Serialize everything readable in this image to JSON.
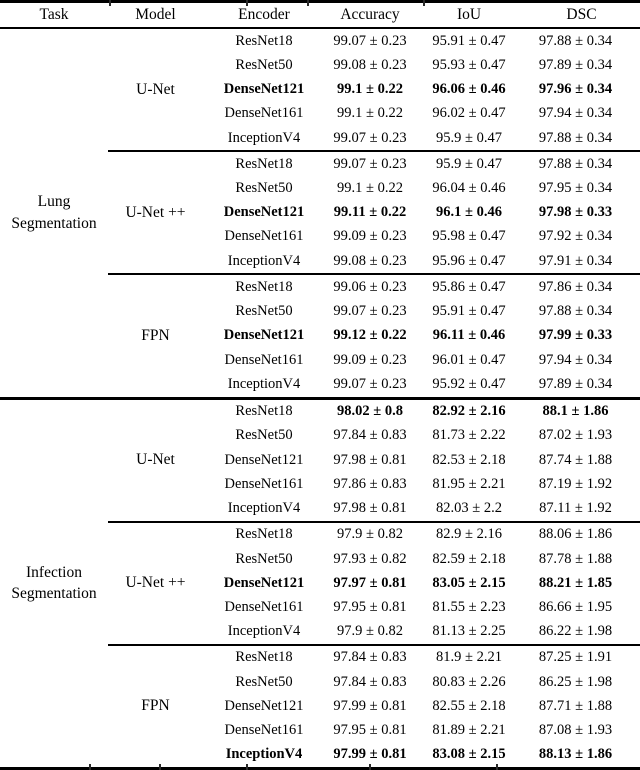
{
  "table": {
    "headers": [
      "Task",
      "Model",
      "Encoder",
      "Accuracy",
      "IoU",
      "DSC"
    ],
    "tasks": [
      {
        "task": "Lung Segmentation",
        "models": [
          {
            "model": "U-Net",
            "rows": [
              {
                "encoder": "ResNet18",
                "accuracy": "99.07 ± 0.23",
                "iou": "95.91 ± 0.47",
                "dsc": "97.88 ± 0.34",
                "bold_encoder": false,
                "bold_values": false
              },
              {
                "encoder": "ResNet50",
                "accuracy": "99.08 ± 0.23",
                "iou": "95.93 ± 0.47",
                "dsc": "97.89 ± 0.34",
                "bold_encoder": false,
                "bold_values": false
              },
              {
                "encoder": "DenseNet121",
                "accuracy": "99.1 ± 0.22",
                "iou": "96.06 ± 0.46",
                "dsc": "97.96 ± 0.34",
                "bold_encoder": true,
                "bold_values": true
              },
              {
                "encoder": "DenseNet161",
                "accuracy": "99.1 ± 0.22",
                "iou": "96.02 ± 0.47",
                "dsc": "97.94 ± 0.34",
                "bold_encoder": false,
                "bold_values": false
              },
              {
                "encoder": "InceptionV4",
                "accuracy": "99.07 ± 0.23",
                "iou": "95.9 ± 0.47",
                "dsc": "97.88 ± 0.34",
                "bold_encoder": false,
                "bold_values": false
              }
            ]
          },
          {
            "model": "U-Net ++",
            "rows": [
              {
                "encoder": "ResNet18",
                "accuracy": "99.07 ± 0.23",
                "iou": "95.9 ± 0.47",
                "dsc": "97.88 ± 0.34",
                "bold_encoder": false,
                "bold_values": false
              },
              {
                "encoder": "ResNet50",
                "accuracy": "99.1 ± 0.22",
                "iou": "96.04 ± 0.46",
                "dsc": "97.95 ± 0.34",
                "bold_encoder": false,
                "bold_values": false
              },
              {
                "encoder": "DenseNet121",
                "accuracy": "99.11 ± 0.22",
                "iou": "96.1 ± 0.46",
                "dsc": "97.98 ± 0.33",
                "bold_encoder": true,
                "bold_values": true
              },
              {
                "encoder": "DenseNet161",
                "accuracy": "99.09 ± 0.23",
                "iou": "95.98 ± 0.47",
                "dsc": "97.92 ± 0.34",
                "bold_encoder": false,
                "bold_values": false
              },
              {
                "encoder": "InceptionV4",
                "accuracy": "99.08 ± 0.23",
                "iou": "95.96 ± 0.47",
                "dsc": "97.91 ± 0.34",
                "bold_encoder": false,
                "bold_values": false
              }
            ]
          },
          {
            "model": "FPN",
            "rows": [
              {
                "encoder": "ResNet18",
                "accuracy": "99.06 ± 0.23",
                "iou": "95.86 ± 0.47",
                "dsc": "97.86 ± 0.34",
                "bold_encoder": false,
                "bold_values": false
              },
              {
                "encoder": "ResNet50",
                "accuracy": "99.07 ± 0.23",
                "iou": "95.91 ± 0.47",
                "dsc": "97.88 ± 0.34",
                "bold_encoder": false,
                "bold_values": false
              },
              {
                "encoder": "DenseNet121",
                "accuracy": "99.12 ± 0.22",
                "iou": "96.11 ± 0.46",
                "dsc": "97.99 ± 0.33",
                "bold_encoder": true,
                "bold_values": true
              },
              {
                "encoder": "DenseNet161",
                "accuracy": "99.09 ± 0.23",
                "iou": "96.01 ± 0.47",
                "dsc": "97.94 ± 0.34",
                "bold_encoder": false,
                "bold_values": false
              },
              {
                "encoder": "InceptionV4",
                "accuracy": "99.07 ± 0.23",
                "iou": "95.92 ± 0.47",
                "dsc": "97.89 ± 0.34",
                "bold_encoder": false,
                "bold_values": false
              }
            ]
          }
        ]
      },
      {
        "task": "Infection Segmentation",
        "models": [
          {
            "model": "U-Net",
            "rows": [
              {
                "encoder": "ResNet18",
                "accuracy": "98.02 ± 0.8",
                "iou": "82.92 ± 2.16",
                "dsc": "88.1 ± 1.86",
                "bold_encoder": false,
                "bold_values": true
              },
              {
                "encoder": "ResNet50",
                "accuracy": "97.84 ± 0.83",
                "iou": "81.73 ± 2.22",
                "dsc": "87.02 ± 1.93",
                "bold_encoder": false,
                "bold_values": false
              },
              {
                "encoder": "DenseNet121",
                "accuracy": "97.98 ± 0.81",
                "iou": "82.53 ± 2.18",
                "dsc": "87.74 ± 1.88",
                "bold_encoder": false,
                "bold_values": false
              },
              {
                "encoder": "DenseNet161",
                "accuracy": "97.86 ± 0.83",
                "iou": "81.95 ± 2.21",
                "dsc": "87.19 ± 1.92",
                "bold_encoder": false,
                "bold_values": false
              },
              {
                "encoder": "InceptionV4",
                "accuracy": "97.98 ± 0.81",
                "iou": "82.03 ± 2.2",
                "dsc": "87.11 ± 1.92",
                "bold_encoder": false,
                "bold_values": false
              }
            ]
          },
          {
            "model": "U-Net ++",
            "rows": [
              {
                "encoder": "ResNet18",
                "accuracy": "97.9 ± 0.82",
                "iou": "82.9 ± 2.16",
                "dsc": "88.06 ± 1.86",
                "bold_encoder": false,
                "bold_values": false
              },
              {
                "encoder": "ResNet50",
                "accuracy": "97.93 ± 0.82",
                "iou": "82.59 ± 2.18",
                "dsc": "87.78 ± 1.88",
                "bold_encoder": false,
                "bold_values": false
              },
              {
                "encoder": "DenseNet121",
                "accuracy": "97.97 ± 0.81",
                "iou": "83.05 ± 2.15",
                "dsc": "88.21 ± 1.85",
                "bold_encoder": true,
                "bold_values": true
              },
              {
                "encoder": "DenseNet161",
                "accuracy": "97.95 ± 0.81",
                "iou": "81.55 ± 2.23",
                "dsc": "86.66 ± 1.95",
                "bold_encoder": false,
                "bold_values": false
              },
              {
                "encoder": "InceptionV4",
                "accuracy": "97.9 ± 0.82",
                "iou": "81.13 ± 2.25",
                "dsc": "86.22 ± 1.98",
                "bold_encoder": false,
                "bold_values": false
              }
            ]
          },
          {
            "model": "FPN",
            "rows": [
              {
                "encoder": "ResNet18",
                "accuracy": "97.84 ± 0.83",
                "iou": "81.9 ± 2.21",
                "dsc": "87.25 ± 1.91",
                "bold_encoder": false,
                "bold_values": false
              },
              {
                "encoder": "ResNet50",
                "accuracy": "97.84 ± 0.83",
                "iou": "80.83 ± 2.26",
                "dsc": "86.25 ± 1.98",
                "bold_encoder": false,
                "bold_values": false
              },
              {
                "encoder": "DenseNet121",
                "accuracy": "97.99 ± 0.81",
                "iou": "82.55 ± 2.18",
                "dsc": "87.71 ± 1.88",
                "bold_encoder": false,
                "bold_values": false
              },
              {
                "encoder": "DenseNet161",
                "accuracy": "97.95 ± 0.81",
                "iou": "81.89 ± 2.21",
                "dsc": "87.08 ± 1.93",
                "bold_encoder": false,
                "bold_values": false
              },
              {
                "encoder": "InceptionV4",
                "accuracy": "97.99 ± 0.81",
                "iou": "83.08 ± 2.15",
                "dsc": "88.13 ± 1.86",
                "bold_encoder": true,
                "bold_values": true
              }
            ]
          }
        ]
      }
    ]
  }
}
